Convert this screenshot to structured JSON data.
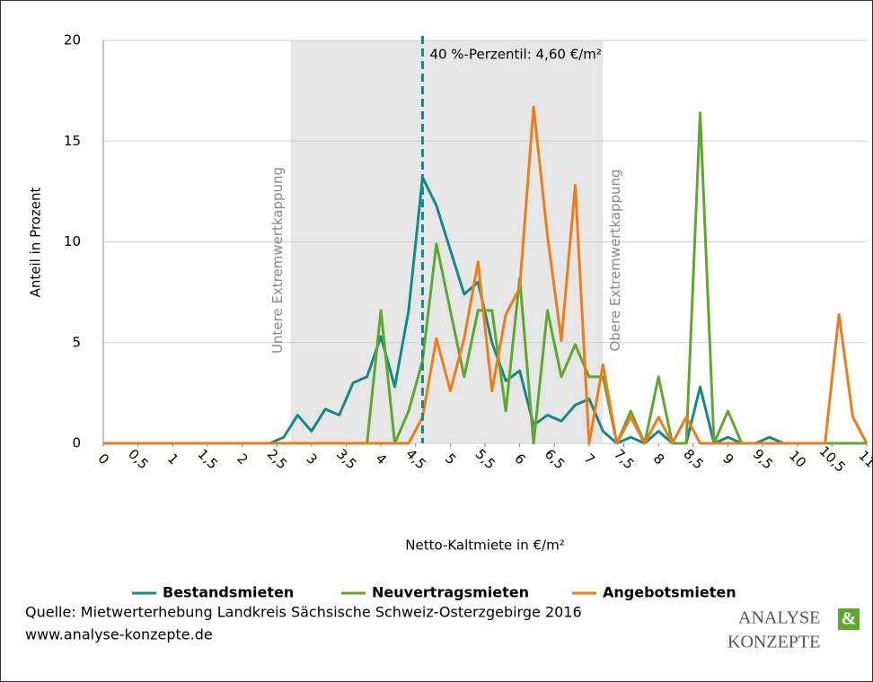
{
  "chart_data": {
    "type": "line",
    "xlabel": "Netto-Kaltmiete in €/m²",
    "ylabel": "Anteil in Prozent",
    "x": [
      0,
      0.2,
      0.4,
      0.6,
      0.8,
      1,
      1.2,
      1.4,
      1.6,
      1.8,
      2,
      2.2,
      2.4,
      2.6,
      2.8,
      3,
      3.2,
      3.4,
      3.6,
      3.8,
      4,
      4.2,
      4.4,
      4.6,
      4.8,
      5,
      5.2,
      5.4,
      5.6,
      5.8,
      6,
      6.2,
      6.4,
      6.6,
      6.8,
      7,
      7.2,
      7.4,
      7.6,
      7.8,
      8,
      8.2,
      8.4,
      8.6,
      8.8,
      9,
      9.2,
      9.4,
      9.6,
      9.8,
      10,
      10.2,
      10.4,
      10.6,
      10.8,
      11
    ],
    "series": [
      {
        "name": "Bestandsmieten",
        "color": "#138a86",
        "values": [
          0,
          0,
          0,
          0,
          0,
          0,
          0,
          0,
          0,
          0,
          0,
          0,
          0,
          0.3,
          1.4,
          0.6,
          1.7,
          1.4,
          3.0,
          3.3,
          5.3,
          2.8,
          6.6,
          13.2,
          11.8,
          9.6,
          7.4,
          8.0,
          5.0,
          3.1,
          3.6,
          0.9,
          1.4,
          1.1,
          1.9,
          2.2,
          0.6,
          0,
          0.3,
          0,
          0.6,
          0,
          0,
          2.8,
          0,
          0.3,
          0,
          0,
          0.3,
          0,
          0,
          0,
          0,
          0,
          0,
          0
        ]
      },
      {
        "name": "Neuvertragsmieten",
        "color": "#5ea82e",
        "values": [
          0,
          0,
          0,
          0,
          0,
          0,
          0,
          0,
          0,
          0,
          0,
          0,
          0,
          0,
          0,
          0,
          0,
          0,
          0,
          0,
          6.6,
          0,
          1.6,
          4.1,
          9.9,
          6.6,
          3.3,
          6.6,
          6.6,
          1.6,
          8.2,
          0,
          6.6,
          3.3,
          4.9,
          3.3,
          3.3,
          0,
          1.6,
          0,
          3.3,
          0,
          0,
          16.4,
          0,
          1.6,
          0,
          0,
          0,
          0,
          0,
          0,
          0,
          0,
          0,
          0
        ]
      },
      {
        "name": "Angebotsmieten",
        "color": "#ef7d17",
        "values": [
          0,
          0,
          0,
          0,
          0,
          0,
          0,
          0,
          0,
          0,
          0,
          0,
          0,
          0,
          0,
          0,
          0,
          0,
          0,
          0,
          0,
          0,
          0,
          1.3,
          5.2,
          2.6,
          5.2,
          9.0,
          2.6,
          6.4,
          7.7,
          16.7,
          10.3,
          5.1,
          12.8,
          0,
          3.9,
          0,
          1.3,
          0,
          1.3,
          0,
          1.3,
          0,
          0,
          0,
          0,
          0,
          0,
          0,
          0,
          0,
          0,
          6.4,
          1.3,
          0
        ]
      }
    ],
    "xlim": [
      0,
      11
    ],
    "ylim": [
      0,
      20
    ],
    "xticks": [
      0,
      {
        "value": 0.5,
        "label": "0,5"
      },
      1,
      {
        "value": 1.5,
        "label": "1,5"
      },
      2,
      {
        "value": 2.5,
        "label": "2,5"
      },
      3,
      {
        "value": 3.5,
        "label": "3,5"
      },
      4,
      {
        "value": 4.5,
        "label": "4,5"
      },
      5,
      {
        "value": 5.5,
        "label": "5,5"
      },
      6,
      {
        "value": 6.5,
        "label": "6,5"
      },
      7,
      {
        "value": 7.5,
        "label": "7,5"
      },
      8,
      {
        "value": 8.5,
        "label": "8,5"
      },
      9,
      {
        "value": 9.5,
        "label": "9,5"
      },
      10,
      {
        "value": 10.5,
        "label": "10,5"
      },
      11
    ],
    "yticks": [
      0,
      5,
      10,
      15,
      20
    ],
    "grid": true,
    "shade": [
      2.7,
      7.2
    ],
    "shade_labels": [
      "Untere Extremwertkappung",
      "Obere Extremwertkappung"
    ],
    "marker_line": {
      "x": 4.6,
      "label": "40 %-Perzentil: 4,60 €/m²",
      "color": "#138a86"
    },
    "legend": "bottom"
  },
  "footer": {
    "source": "Quelle: Mietwerterhebung Landkreis Sächsische Schweiz-Osterzgebirge 2016",
    "url": "www.analyse-konzepte.de",
    "logo": [
      "ANALYSE",
      "&",
      "KONZEPTE"
    ]
  }
}
